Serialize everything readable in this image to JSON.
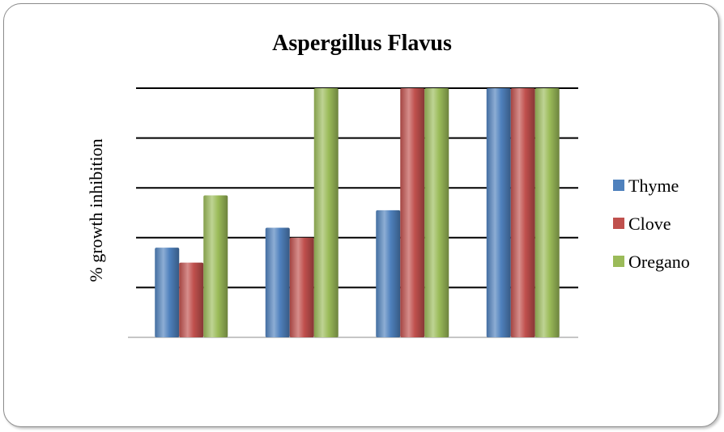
{
  "chart_data": {
    "type": "bar",
    "title": "Aspergillus Flavus",
    "xlabel": "",
    "ylabel": "% growth inhibition",
    "categories": [
      "",
      "",
      "",
      ""
    ],
    "ylim": [
      0,
      100
    ],
    "grid": true,
    "legend_position": "right",
    "series": [
      {
        "name": "Thyme",
        "color": "#4f81bd",
        "values": [
          36,
          44,
          51,
          100
        ]
      },
      {
        "name": "Clove",
        "color": "#c0504d",
        "values": [
          30,
          40,
          100,
          100
        ]
      },
      {
        "name": "Oregano",
        "color": "#9bbb59",
        "values": [
          57,
          100,
          100,
          100
        ]
      }
    ]
  }
}
